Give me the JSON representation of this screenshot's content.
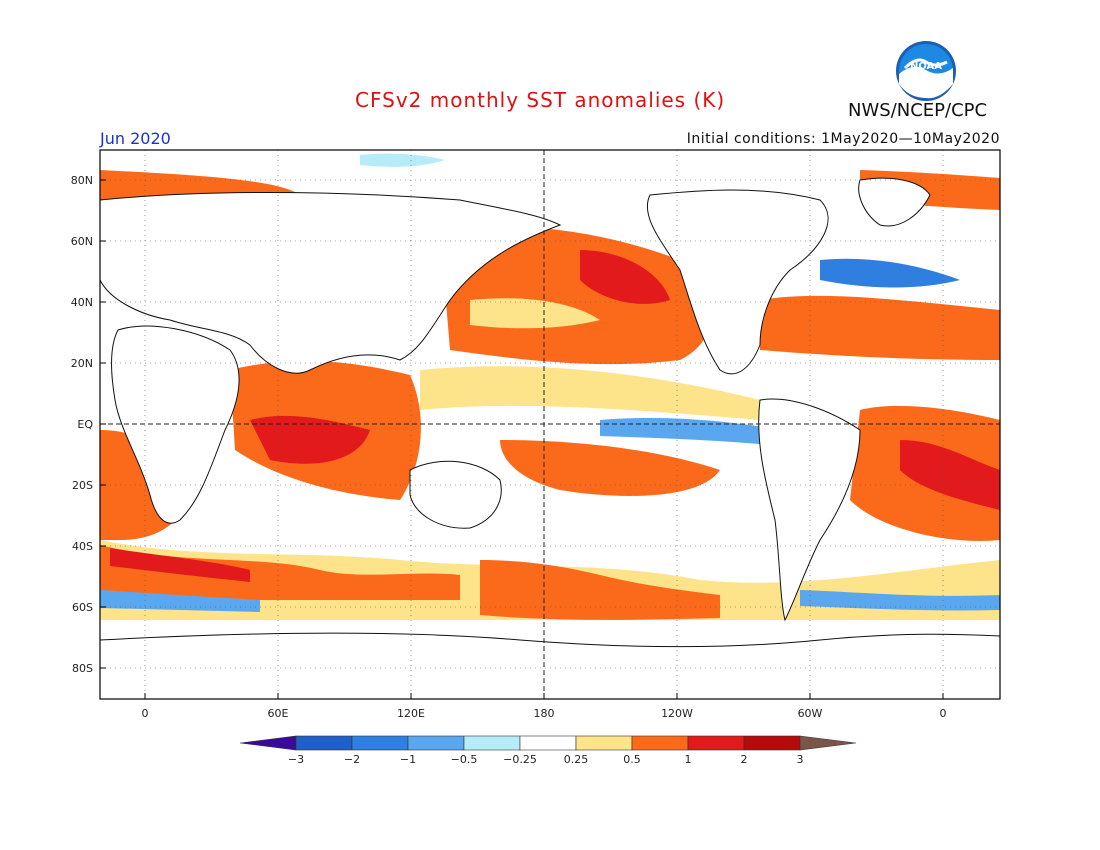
{
  "header": {
    "title": "CFSv2 monthly SST anomalies (K)",
    "month": "Jun 2020",
    "initial_conditions": "Initial conditions: 1May2020—10May2020",
    "organization": "NWS/NCEP/CPC",
    "logo_text": "NOAA"
  },
  "map": {
    "lon_ticks": [
      "0",
      "60E",
      "120E",
      "180",
      "120W",
      "60W",
      "0"
    ],
    "lat_ticks": [
      "80N",
      "60N",
      "40N",
      "20N",
      "EQ",
      "20S",
      "40S",
      "60S",
      "80S"
    ]
  },
  "colorbar": {
    "labels": [
      "−3",
      "−2",
      "−1",
      "−0.5",
      "−0.25",
      "0.25",
      "0.5",
      "1",
      "2",
      "3"
    ],
    "colors": [
      "#3a0a9a",
      "#1f5fc8",
      "#2f7fe0",
      "#5aa6ef",
      "#b6ecf7",
      "#ffffff",
      "#fde48a",
      "#fb6a1a",
      "#e31a1c",
      "#b40a0a",
      "#7a5548"
    ]
  },
  "colors": {
    "title": "#e01010",
    "month": "#1a33cc",
    "warm": "#fb6a1a",
    "hot": "#e31a1c",
    "cool": "#5aa6ef"
  }
}
